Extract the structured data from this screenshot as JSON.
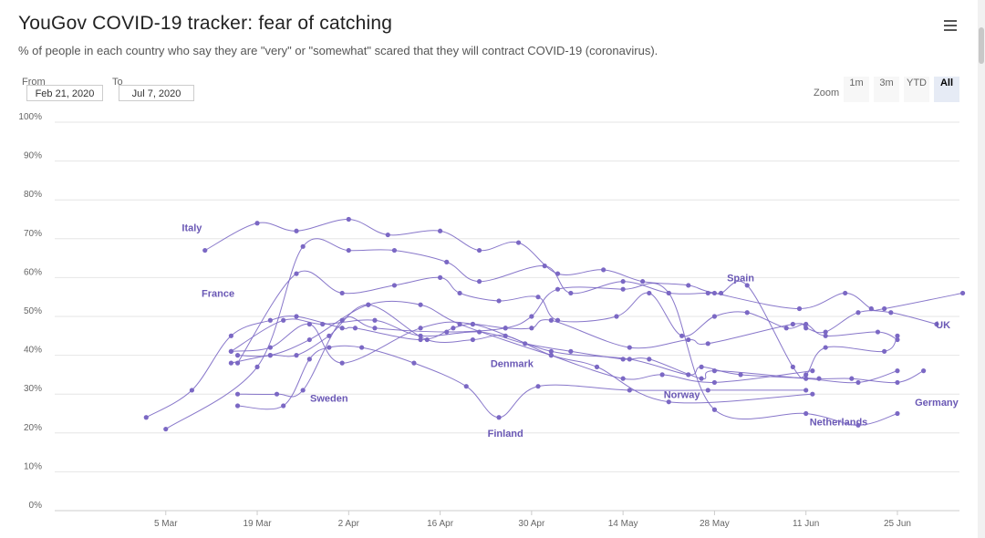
{
  "header": {
    "title": "YouGov COVID-19 tracker: fear of catching",
    "subtitle": "% of people in each country who say they are \"very\" or \"somewhat\" scared that they will contract COVID-19 (coronavirus)."
  },
  "range": {
    "from_label": "From",
    "from_value": "Feb 21, 2020",
    "to_label": "To",
    "to_value": "Jul 7, 2020"
  },
  "zoom": {
    "label": "Zoom",
    "buttons": [
      "1m",
      "3m",
      "YTD",
      "All"
    ],
    "active": "All"
  },
  "colors": {
    "series": "#7b68c4",
    "label": "#6a58b5",
    "grid": "#e6e6e6",
    "axis": "#cccccc"
  },
  "chart_data": {
    "type": "line",
    "title": "YouGov COVID-19 tracker: fear of catching",
    "ylim": [
      0,
      100
    ],
    "y_ticks": [
      0,
      10,
      20,
      30,
      40,
      50,
      60,
      70,
      80,
      90,
      100
    ],
    "y_tick_labels": [
      "0%",
      "10%",
      "20%",
      "30%",
      "40%",
      "50%",
      "60%",
      "70%",
      "80%",
      "90%",
      "100%"
    ],
    "x_domain_days": [
      -4,
      134.5
    ],
    "x_ticks": [
      {
        "day": 13,
        "label": "5 Mar"
      },
      {
        "day": 27,
        "label": "19 Mar"
      },
      {
        "day": 41,
        "label": "2 Apr"
      },
      {
        "day": 55,
        "label": "16 Apr"
      },
      {
        "day": 69,
        "label": "30 Apr"
      },
      {
        "day": 83,
        "label": "14 May"
      },
      {
        "day": 97,
        "label": "28 May"
      },
      {
        "day": 111,
        "label": "11 Jun"
      },
      {
        "day": 125,
        "label": "25 Jun"
      }
    ],
    "series": [
      {
        "name": "Italy",
        "label_day": 17,
        "label_value": 72,
        "points": [
          [
            19,
            67
          ],
          [
            27,
            74
          ],
          [
            33,
            72
          ],
          [
            41,
            75
          ],
          [
            47,
            71
          ],
          [
            55,
            72
          ],
          [
            61,
            67
          ],
          [
            67,
            69
          ],
          [
            73,
            61
          ],
          [
            80,
            62
          ],
          [
            86,
            59
          ],
          [
            93,
            58
          ],
          [
            97,
            56
          ],
          [
            110,
            52
          ],
          [
            117,
            56
          ],
          [
            121,
            52
          ],
          [
            123,
            52
          ],
          [
            135,
            56
          ]
        ]
      },
      {
        "name": "Spain",
        "label_day": 101,
        "label_value": 59,
        "points": [
          [
            13,
            21
          ],
          [
            27,
            37
          ],
          [
            34,
            68
          ],
          [
            41,
            67
          ],
          [
            48,
            67
          ],
          [
            56,
            64
          ],
          [
            61,
            59
          ],
          [
            71,
            63
          ],
          [
            75,
            56
          ],
          [
            83,
            59
          ],
          [
            90,
            56
          ],
          [
            96,
            56
          ],
          [
            98,
            56
          ],
          [
            102,
            58
          ],
          [
            109,
            37
          ],
          [
            111,
            35
          ],
          [
            114,
            42
          ],
          [
            123,
            41
          ],
          [
            125,
            45
          ]
        ]
      },
      {
        "name": "France",
        "label_day": 21,
        "label_value": 55,
        "points": [
          [
            24,
            38
          ],
          [
            33,
            61
          ],
          [
            40,
            56
          ],
          [
            48,
            58
          ],
          [
            55,
            60
          ],
          [
            58,
            56
          ],
          [
            64,
            54
          ],
          [
            70,
            55
          ],
          [
            73,
            49
          ],
          [
            82,
            50
          ],
          [
            87,
            56
          ],
          [
            92,
            45
          ],
          [
            97,
            50
          ],
          [
            102,
            51
          ],
          [
            108,
            47
          ],
          [
            111,
            48
          ],
          [
            114,
            45
          ],
          [
            122,
            46
          ],
          [
            125,
            44
          ]
        ]
      },
      {
        "name": "UK",
        "label_day": 132,
        "label_value": 47,
        "points": [
          [
            10,
            24
          ],
          [
            17,
            31
          ],
          [
            23,
            45
          ],
          [
            29,
            49
          ],
          [
            33,
            50
          ],
          [
            40,
            47
          ],
          [
            42,
            47
          ],
          [
            52,
            44
          ],
          [
            57,
            47
          ],
          [
            60,
            48
          ],
          [
            65,
            47
          ],
          [
            69,
            47
          ],
          [
            72,
            49
          ],
          [
            84,
            42
          ],
          [
            93,
            44
          ],
          [
            96,
            43
          ],
          [
            109,
            48
          ],
          [
            111,
            47
          ],
          [
            114,
            46
          ],
          [
            119,
            51
          ],
          [
            124,
            51
          ],
          [
            131,
            48
          ]
        ]
      },
      {
        "name": "Germany",
        "label_day": 131,
        "label_value": 27,
        "points": [
          [
            23,
            41
          ],
          [
            29,
            42
          ],
          [
            35,
            48
          ],
          [
            40,
            38
          ],
          [
            52,
            47
          ],
          [
            60,
            48
          ],
          [
            72,
            41
          ],
          [
            84,
            39
          ],
          [
            93,
            35
          ],
          [
            95,
            37
          ],
          [
            101,
            35
          ],
          [
            113,
            34
          ],
          [
            118,
            34
          ],
          [
            125,
            33
          ],
          [
            129,
            36
          ]
        ]
      },
      {
        "name": "Denmark",
        "label_day": 66,
        "label_value": 37,
        "points": [
          [
            23,
            41
          ],
          [
            31,
            49
          ],
          [
            37,
            48
          ],
          [
            45,
            49
          ],
          [
            52,
            45
          ],
          [
            61,
            46
          ],
          [
            68,
            43
          ],
          [
            75,
            41
          ],
          [
            83,
            39
          ],
          [
            87,
            39
          ],
          [
            95,
            34
          ],
          [
            97,
            36
          ],
          [
            111,
            34
          ],
          [
            119,
            33
          ],
          [
            125,
            36
          ]
        ]
      },
      {
        "name": "Norway",
        "label_day": 92,
        "label_value": 29,
        "points": [
          [
            23,
            38
          ],
          [
            29,
            40
          ],
          [
            33,
            40
          ],
          [
            38,
            45
          ],
          [
            44,
            53
          ],
          [
            53,
            44
          ],
          [
            60,
            44
          ],
          [
            65,
            45
          ],
          [
            72,
            40
          ],
          [
            83,
            34
          ],
          [
            89,
            35
          ],
          [
            97,
            33
          ],
          [
            112,
            36
          ]
        ]
      },
      {
        "name": "Netherlands",
        "label_day": 116,
        "label_value": 22,
        "points": [
          [
            24,
            40
          ],
          [
            29,
            40
          ],
          [
            35,
            44
          ],
          [
            44,
            53
          ],
          [
            52,
            53
          ],
          [
            58,
            48
          ],
          [
            72,
            40
          ],
          [
            79,
            37
          ],
          [
            90,
            28
          ],
          [
            112,
            30
          ]
        ]
      },
      {
        "name": "Sweden",
        "label_day": 38,
        "label_value": 28,
        "points": [
          [
            24,
            27
          ],
          [
            31,
            27
          ],
          [
            35,
            39
          ],
          [
            38,
            42
          ],
          [
            43,
            42
          ],
          [
            51,
            38
          ],
          [
            59,
            32
          ],
          [
            64,
            24
          ],
          [
            70,
            32
          ],
          [
            84,
            31
          ],
          [
            96,
            31
          ],
          [
            111,
            31
          ]
        ]
      },
      {
        "name": "Finland",
        "label_day": 65,
        "label_value": 19,
        "points": [
          [
            24,
            30
          ],
          [
            30,
            30
          ],
          [
            34,
            31
          ],
          [
            40,
            49
          ],
          [
            45,
            47
          ],
          [
            56,
            46
          ],
          [
            65,
            47
          ],
          [
            69,
            50
          ],
          [
            73,
            57
          ],
          [
            83,
            57
          ],
          [
            90,
            56
          ],
          [
            97,
            26
          ],
          [
            111,
            25
          ],
          [
            119,
            22
          ],
          [
            125,
            25
          ]
        ]
      }
    ]
  }
}
